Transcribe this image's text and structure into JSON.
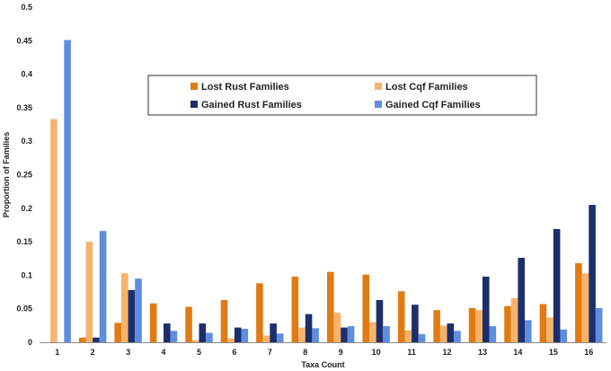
{
  "chart_data": {
    "type": "bar",
    "title": "",
    "xlabel": "Taxa Count",
    "ylabel": "Proportion of Families",
    "ylim": [
      0,
      0.5
    ],
    "yticks": [
      0,
      0.05,
      0.1,
      0.15,
      0.2,
      0.25,
      0.3,
      0.35,
      0.4,
      0.45,
      0.5
    ],
    "ytick_labels": [
      "0",
      "0.05",
      "0.1",
      "0.15",
      "0.2",
      "0.25",
      "0.3",
      "0.35",
      "0.4",
      "0.45",
      "0.5"
    ],
    "categories": [
      "1",
      "2",
      "3",
      "4",
      "5",
      "6",
      "7",
      "8",
      "9",
      "10",
      "11",
      "12",
      "13",
      "14",
      "15",
      "16"
    ],
    "grid": false,
    "legend_position": "upper-center",
    "series": [
      {
        "name": "Lost Rust Families",
        "color": "#e07b14",
        "values": [
          0,
          0.007,
          0.029,
          0.058,
          0.053,
          0.063,
          0.088,
          0.098,
          0.105,
          0.101,
          0.076,
          0.048,
          0.051,
          0.054,
          0.057,
          0.118
        ]
      },
      {
        "name": "Lost Cqf Families",
        "color": "#f8b36b",
        "values": [
          0.333,
          0.15,
          0.103,
          0,
          0.003,
          0.006,
          0.01,
          0.022,
          0.044,
          0.03,
          0.018,
          0.025,
          0.048,
          0.066,
          0.037,
          0.103
        ]
      },
      {
        "name": "Gained Rust Families",
        "color": "#1c2f6b",
        "values": [
          0,
          0.007,
          0.078,
          0.028,
          0.028,
          0.022,
          0.028,
          0.042,
          0.022,
          0.063,
          0.056,
          0.028,
          0.098,
          0.126,
          0.169,
          0.205
        ]
      },
      {
        "name": "Gained Cqf Families",
        "color": "#5f8ee0",
        "values": [
          0.451,
          0.166,
          0.095,
          0.017,
          0.014,
          0.02,
          0.013,
          0.021,
          0.024,
          0.024,
          0.012,
          0.017,
          0.024,
          0.033,
          0.019,
          0.051
        ]
      }
    ]
  }
}
